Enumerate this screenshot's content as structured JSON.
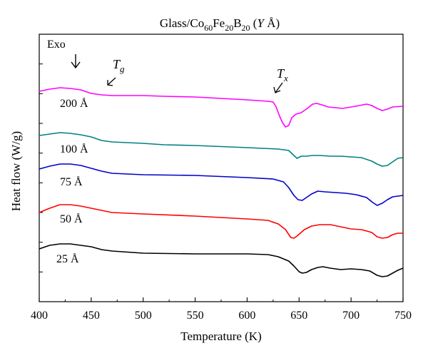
{
  "chart_data": {
    "type": "line",
    "title": {
      "main": "Glass/Co",
      "s1": "60",
      "m1": "Fe",
      "s2": "20",
      "m2": "B",
      "s3": "20",
      "tail_open": " (",
      "tail_var": "Y",
      "tail_unit": " Å)"
    },
    "xlabel": "Temperature (K)",
    "ylabel": "Heat flow (W/g)",
    "xlim": [
      400,
      750
    ],
    "x_ticks": [
      400,
      450,
      500,
      550,
      600,
      650,
      700,
      750
    ],
    "y_ticks_labeled": false,
    "grid": false,
    "legend": "inline labels",
    "annotations": {
      "exo": "Exo",
      "tg_symbol": "T",
      "tg_sub": "g",
      "tx_symbol": "T",
      "tx_sub": "x"
    },
    "series": [
      {
        "name": "200 Å",
        "color": "#ff00ff",
        "points": [
          [
            400,
            128
          ],
          [
            410,
            125
          ],
          [
            420,
            123
          ],
          [
            430,
            124
          ],
          [
            440,
            126
          ],
          [
            450,
            131
          ],
          [
            460,
            133
          ],
          [
            470,
            134
          ],
          [
            500,
            134
          ],
          [
            520,
            135
          ],
          [
            550,
            136
          ],
          [
            600,
            140
          ],
          [
            620,
            142
          ],
          [
            625,
            143
          ],
          [
            628,
            150
          ],
          [
            631,
            162
          ],
          [
            634,
            172
          ],
          [
            637,
            178
          ],
          [
            640,
            176
          ],
          [
            643,
            165
          ],
          [
            647,
            160
          ],
          [
            652,
            158
          ],
          [
            658,
            152
          ],
          [
            663,
            146
          ],
          [
            667,
            145
          ],
          [
            672,
            147
          ],
          [
            678,
            150
          ],
          [
            685,
            151
          ],
          [
            692,
            152
          ],
          [
            700,
            150
          ],
          [
            708,
            148
          ],
          [
            715,
            146
          ],
          [
            720,
            148
          ],
          [
            725,
            152
          ],
          [
            730,
            155
          ],
          [
            735,
            153
          ],
          [
            740,
            150
          ],
          [
            750,
            149
          ]
        ]
      },
      {
        "name": "100 Å",
        "color": "#008080",
        "points": [
          [
            400,
            190
          ],
          [
            410,
            188
          ],
          [
            420,
            186
          ],
          [
            430,
            187
          ],
          [
            440,
            189
          ],
          [
            450,
            192
          ],
          [
            460,
            197
          ],
          [
            470,
            199
          ],
          [
            500,
            201
          ],
          [
            520,
            203
          ],
          [
            550,
            204
          ],
          [
            600,
            207
          ],
          [
            630,
            209
          ],
          [
            640,
            211
          ],
          [
            645,
            218
          ],
          [
            648,
            222
          ],
          [
            652,
            219
          ],
          [
            657,
            219
          ],
          [
            663,
            218
          ],
          [
            670,
            218
          ],
          [
            680,
            219
          ],
          [
            690,
            219
          ],
          [
            700,
            220
          ],
          [
            710,
            221
          ],
          [
            720,
            226
          ],
          [
            725,
            230
          ],
          [
            730,
            233
          ],
          [
            735,
            232
          ],
          [
            740,
            227
          ],
          [
            745,
            222
          ],
          [
            750,
            221
          ]
        ]
      },
      {
        "name": "75 Å",
        "color": "#0000cc",
        "points": [
          [
            400,
            237
          ],
          [
            410,
            233
          ],
          [
            420,
            230
          ],
          [
            430,
            230
          ],
          [
            440,
            232
          ],
          [
            450,
            236
          ],
          [
            460,
            240
          ],
          [
            470,
            243
          ],
          [
            500,
            245
          ],
          [
            550,
            246
          ],
          [
            600,
            249
          ],
          [
            625,
            251
          ],
          [
            635,
            255
          ],
          [
            640,
            263
          ],
          [
            645,
            274
          ],
          [
            649,
            280
          ],
          [
            653,
            281
          ],
          [
            657,
            277
          ],
          [
            662,
            272
          ],
          [
            668,
            268
          ],
          [
            675,
            269
          ],
          [
            685,
            270
          ],
          [
            695,
            271
          ],
          [
            705,
            273
          ],
          [
            715,
            277
          ],
          [
            720,
            283
          ],
          [
            725,
            288
          ],
          [
            730,
            285
          ],
          [
            735,
            280
          ],
          [
            740,
            276
          ],
          [
            745,
            275
          ],
          [
            750,
            274
          ]
        ]
      },
      {
        "name": "50 Å",
        "color": "#ff0000",
        "points": [
          [
            400,
            298
          ],
          [
            410,
            292
          ],
          [
            420,
            287
          ],
          [
            430,
            287
          ],
          [
            440,
            289
          ],
          [
            450,
            292
          ],
          [
            460,
            295
          ],
          [
            470,
            298
          ],
          [
            500,
            300
          ],
          [
            550,
            303
          ],
          [
            600,
            307
          ],
          [
            620,
            309
          ],
          [
            630,
            314
          ],
          [
            637,
            322
          ],
          [
            642,
            333
          ],
          [
            645,
            334
          ],
          [
            648,
            331
          ],
          [
            655,
            322
          ],
          [
            662,
            317
          ],
          [
            670,
            315
          ],
          [
            680,
            315
          ],
          [
            690,
            318
          ],
          [
            700,
            321
          ],
          [
            710,
            322
          ],
          [
            720,
            326
          ],
          [
            725,
            332
          ],
          [
            730,
            334
          ],
          [
            735,
            333
          ],
          [
            740,
            329
          ],
          [
            745,
            327
          ],
          [
            750,
            327
          ]
        ]
      },
      {
        "name": "25 Å",
        "color": "#000000",
        "points": [
          [
            400,
            349
          ],
          [
            410,
            344
          ],
          [
            420,
            342
          ],
          [
            430,
            342
          ],
          [
            440,
            344
          ],
          [
            450,
            346
          ],
          [
            460,
            350
          ],
          [
            470,
            352
          ],
          [
            500,
            355
          ],
          [
            550,
            356
          ],
          [
            600,
            356
          ],
          [
            620,
            357
          ],
          [
            630,
            360
          ],
          [
            640,
            366
          ],
          [
            645,
            373
          ],
          [
            650,
            381
          ],
          [
            653,
            383
          ],
          [
            657,
            382
          ],
          [
            662,
            378
          ],
          [
            668,
            375
          ],
          [
            673,
            374
          ],
          [
            680,
            376
          ],
          [
            690,
            378
          ],
          [
            700,
            377
          ],
          [
            710,
            378
          ],
          [
            718,
            380
          ],
          [
            725,
            386
          ],
          [
            730,
            388
          ],
          [
            735,
            387
          ],
          [
            740,
            383
          ],
          [
            745,
            379
          ],
          [
            750,
            376
          ]
        ]
      }
    ]
  }
}
